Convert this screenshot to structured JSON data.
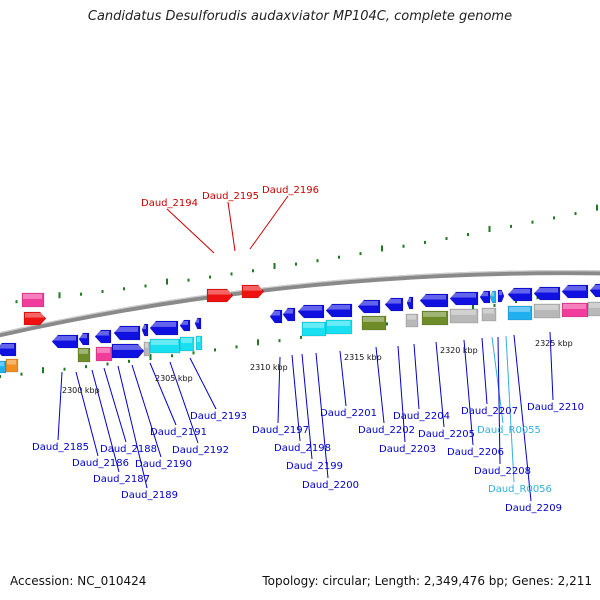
{
  "title": "Candidatus Desulforudis audaxviator MP104C, complete genome",
  "accession": "Accession: NC_010424",
  "summary": "Topology: circular; Length: 2,349,476 bp; Genes: 2,211",
  "colors": {
    "backbone": "#8a8a8a",
    "tick_green": "#1f7a1f",
    "gene_label": "#0000cc",
    "rna_label": "#33b0e0",
    "highlight_label": "#cc0000",
    "cds_forward": "#1010e0",
    "cds_reverse": "#1010e0",
    "red": "#ee1111",
    "cyan": "#18e0f0",
    "magenta": "#f03c9a",
    "olive": "#6e8c28",
    "grey": "#b8b8b8",
    "orange": "#f09020",
    "sky": "#20b0f0"
  },
  "scale_labels": [
    "2300 kbp",
    "2305 kbp",
    "2310 kbp",
    "2315 kbp",
    "2320 kbp",
    "2325 kbp"
  ],
  "highlighted_genes": [
    "Daud_2194",
    "Daud_2195",
    "Daud_2196"
  ],
  "gene_labels": [
    "Daud_2185",
    "Daud_2186",
    "Daud_2187",
    "Daud_2188",
    "Daud_2189",
    "Daud_2190",
    "Daud_2191",
    "Daud_2192",
    "Daud_2193",
    "Daud_2197",
    "Daud_2198",
    "Daud_2199",
    "Daud_2200",
    "Daud_2201",
    "Daud_2202",
    "Daud_2203",
    "Daud_2204",
    "Daud_2205",
    "Daud_2206",
    "Daud_2207",
    "Daud_R0055",
    "Daud_2208",
    "Daud_R0056",
    "Daud_2209",
    "Daud_2210"
  ]
}
